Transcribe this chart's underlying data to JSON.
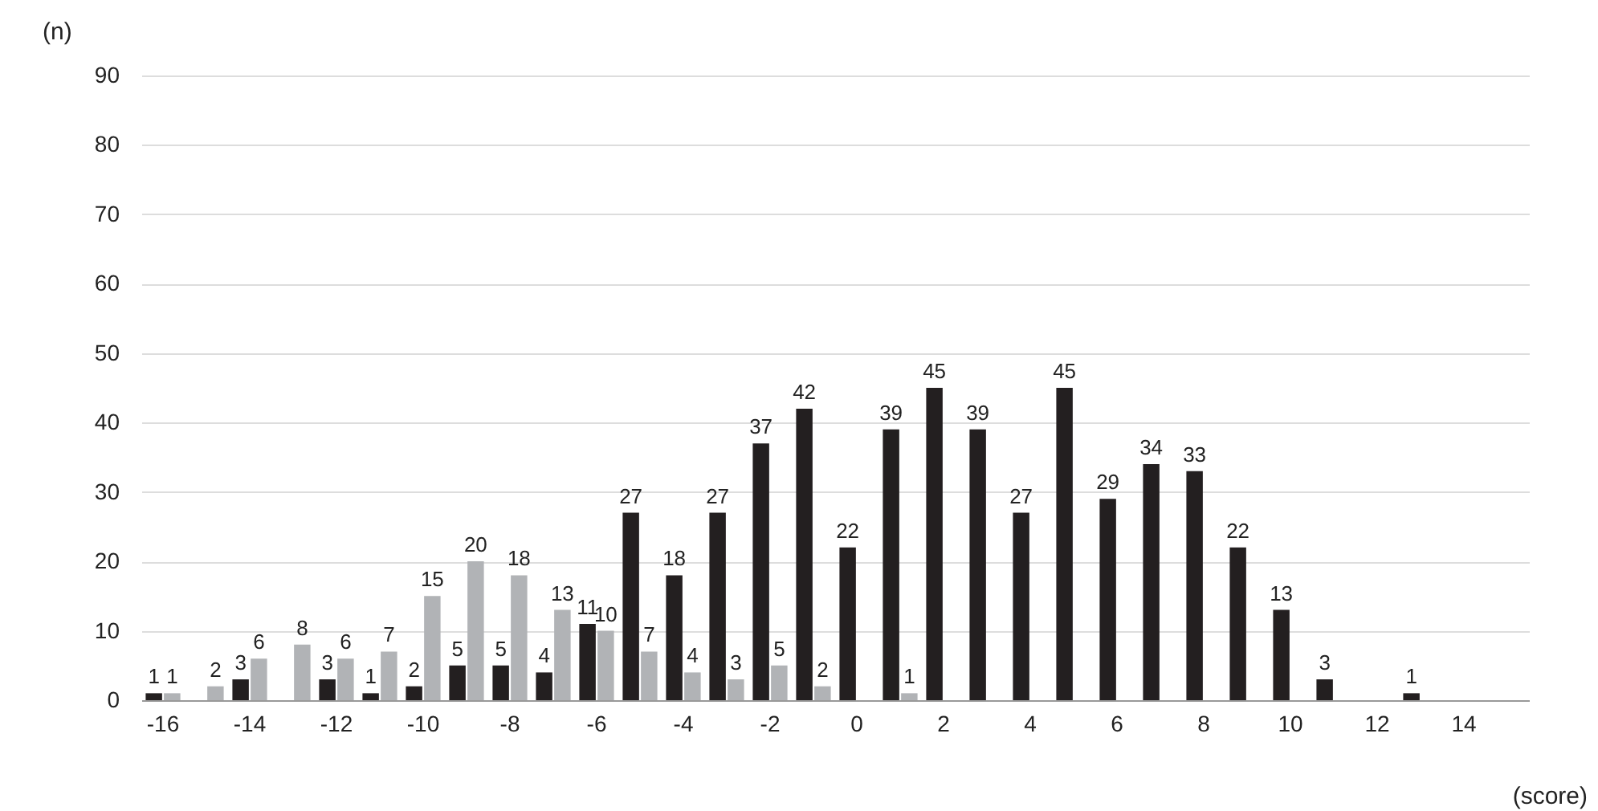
{
  "chart_data": {
    "type": "bar",
    "xlabel": "(score)",
    "ylabel": "(n)",
    "categories": [
      "-16",
      null,
      "-14",
      null,
      "-12",
      null,
      "-10",
      null,
      "-8",
      null,
      "-6",
      null,
      "-4",
      null,
      "-2",
      null,
      "0",
      null,
      "2",
      null,
      "4",
      null,
      "6",
      null,
      "8",
      null,
      "10",
      null,
      "12",
      null,
      "14",
      null
    ],
    "series": [
      {
        "color": "#231f20",
        "values": [
          1,
          null,
          3,
          null,
          3,
          1,
          2,
          5,
          5,
          4,
          11,
          27,
          18,
          27,
          37,
          42,
          22,
          39,
          45,
          39,
          27,
          45,
          29,
          34,
          33,
          22,
          13,
          3,
          null,
          1,
          null,
          null
        ]
      },
      {
        "color": "#b1b3b6",
        "values": [
          1,
          2,
          6,
          8,
          6,
          7,
          15,
          20,
          18,
          13,
          10,
          7,
          4,
          3,
          5,
          2,
          null,
          1,
          null,
          null,
          null,
          null,
          null,
          null,
          null,
          null,
          null,
          null,
          null,
          null,
          null,
          null
        ]
      }
    ],
    "ylim": [
      0,
      90
    ],
    "yticks": [
      0,
      10,
      20,
      30,
      40,
      50,
      60,
      70,
      80,
      90
    ],
    "grid": "y",
    "data_labels": true
  }
}
